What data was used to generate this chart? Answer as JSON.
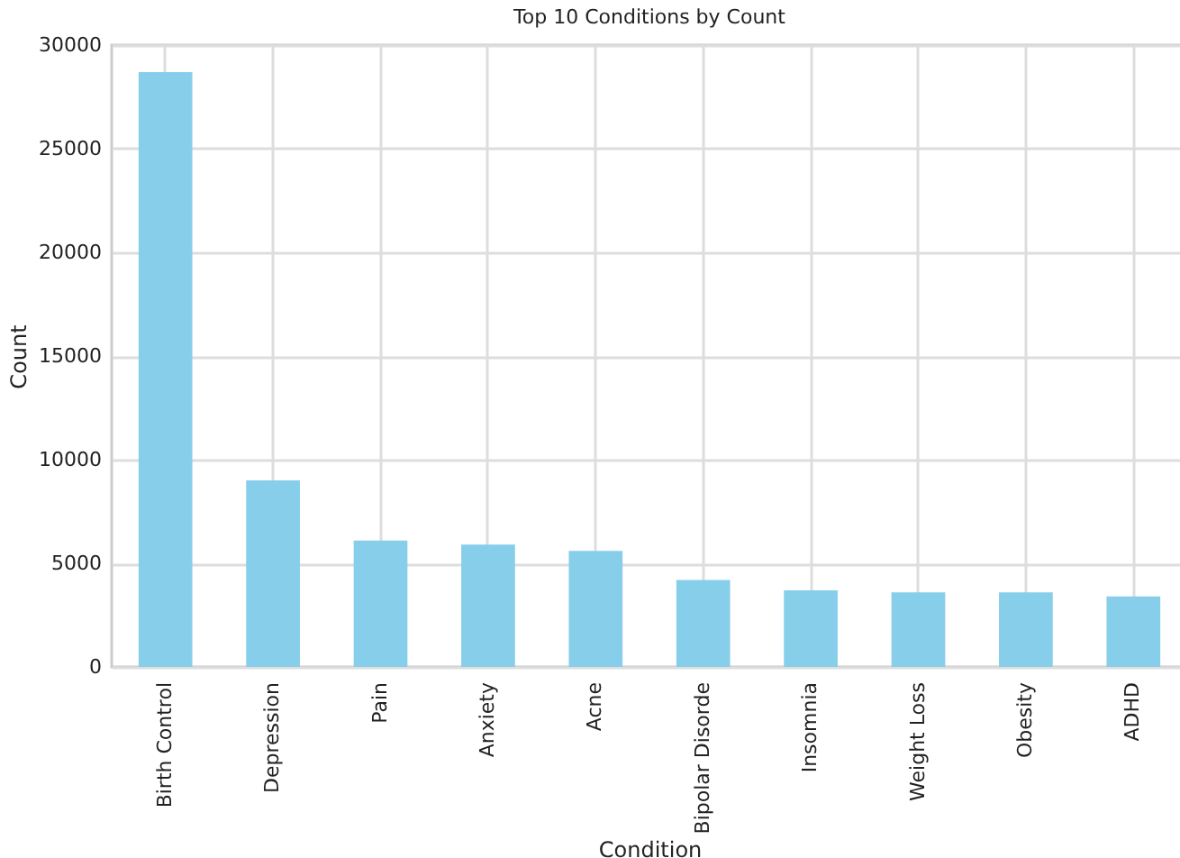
{
  "chart_data": {
    "type": "bar",
    "title": "Top 10 Conditions by Count",
    "xlabel": "Condition",
    "ylabel": "Count",
    "categories": [
      "Birth Control",
      "Depression",
      "Pain",
      "Anxiety",
      "Acne",
      "Bipolar Disorde",
      "Insomnia",
      "Weight Loss",
      "Obesity",
      "ADHD"
    ],
    "values": [
      28700,
      9000,
      6100,
      5900,
      5600,
      4200,
      3700,
      3600,
      3600,
      3400
    ],
    "color": "#87ceeb",
    "ylim": [
      0,
      30000
    ],
    "yticks": [
      0,
      5000,
      10000,
      15000,
      20000,
      25000,
      30000
    ],
    "grid": true
  }
}
